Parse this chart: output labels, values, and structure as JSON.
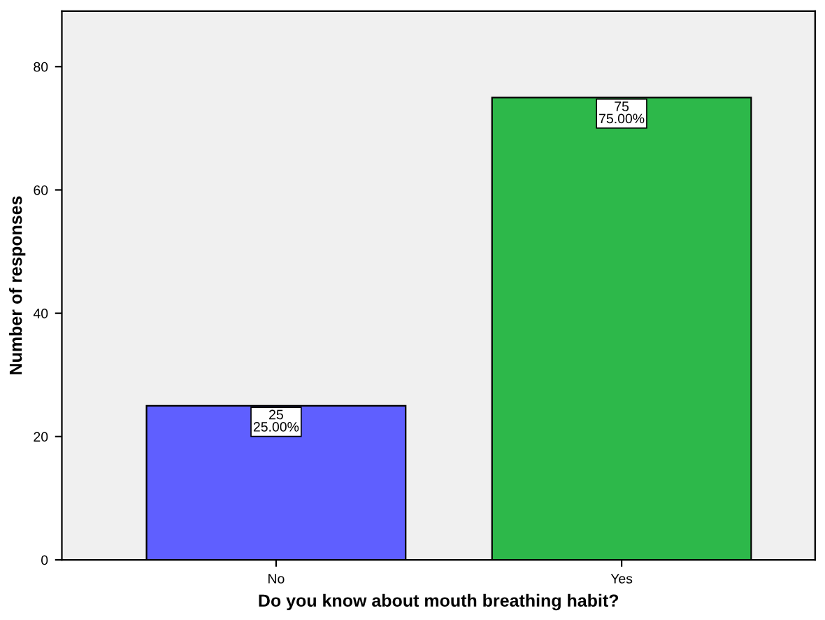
{
  "chart_data": {
    "type": "bar",
    "xlabel": "Do you know about mouth breathing habit?",
    "ylabel": "Number of responses",
    "categories": [
      "No",
      "Yes"
    ],
    "values": [
      25,
      75
    ],
    "colors": [
      "#5f5fff",
      "#2db84a"
    ],
    "value_labels": [
      "25\n25.00%",
      "75\n75.00%"
    ],
    "ylim": [
      0,
      89
    ],
    "yticks": [
      0,
      20,
      40,
      60,
      80
    ],
    "grid": false,
    "legend": false
  }
}
